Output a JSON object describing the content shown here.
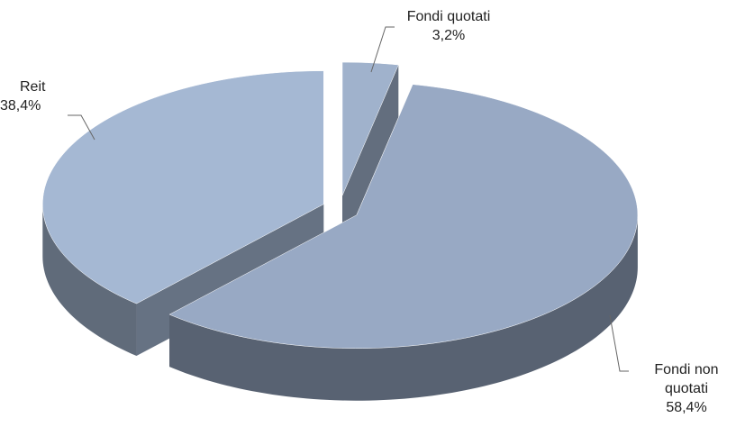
{
  "chart_data": {
    "type": "pie",
    "categories": [
      "Fondi quotati",
      "Fondi non quotati",
      "Reit"
    ],
    "values": [
      3.2,
      58.4,
      38.4
    ],
    "value_labels": [
      "3,2%",
      "58,4%",
      "38,4%"
    ],
    "colors": [
      "#a0b2cc",
      "#98a9c4",
      "#a5b8d3"
    ]
  }
}
